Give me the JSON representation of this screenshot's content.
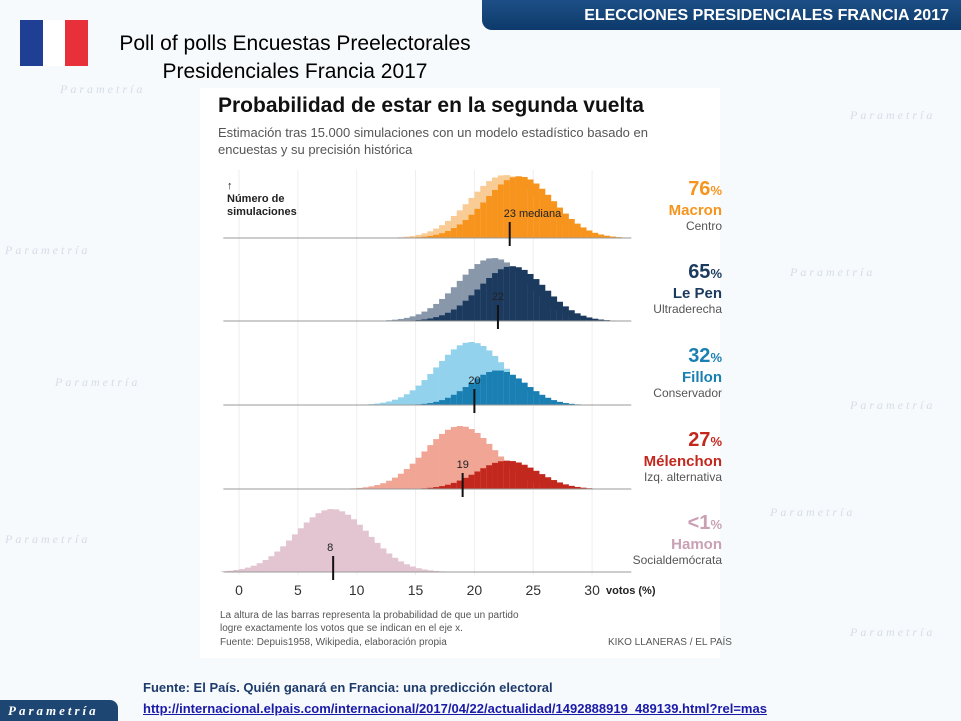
{
  "banner": "ELECCIONES PRESIDENCIALES FRANCIA 2017",
  "slide_title_1": "Poll of polls Encuestas Preelectorales",
  "slide_title_2": "Presidenciales Francia 2017",
  "watermark": "Parametría",
  "logo": "Parametría",
  "footer": {
    "source": "Fuente: El País. Quién ganará en Francia: una predicción electoral",
    "link": "http://internacional.elpais.com/internacional/2017/04/22/actualidad/1492888919_489139.html?rel=mas"
  },
  "chart_data": {
    "type": "bar",
    "title": "Probabilidad de estar en la segunda vuelta",
    "subtitle": "Estimación tras 15.000 simulaciones con un modelo estadístico basado en encuestas y su precisión histórica",
    "ylabel_arrow": "↑",
    "ylabel": "Número de simulaciones",
    "xlabel": "votos (%)",
    "xticks": [
      "0",
      "5",
      "10",
      "15",
      "20",
      "25",
      "30"
    ],
    "xlim": [
      -1.5,
      33.5
    ],
    "bin_width": 0.5,
    "note": "La altura de las barras representa la probabilidad de que un partido logre exactamente los votos que se indican en el eje x.",
    "source": "Fuente: Depuis1958, Wikipedia, elaboración propia",
    "credit": "KIKO LLANERAS / EL PAÍS",
    "series": [
      {
        "name": "Macron",
        "pct": "76",
        "pct_sign": "%",
        "group": "Centro",
        "median": 23,
        "median_label": "23 mediana",
        "color": "#f7941d",
        "light": "#f9cc95",
        "all": {
          "mean": 22.6,
          "sd": 3.0,
          "peak": 1.0
        },
        "second_round": {
          "mean": 23.8,
          "sd": 2.9,
          "peak": 0.98
        }
      },
      {
        "name": "Le Pen",
        "pct": "65",
        "pct_sign": "%",
        "group": "Ultraderecha",
        "median": 22,
        "median_label": "22",
        "color": "#1b3a5e",
        "light": "#8898aa",
        "all": {
          "mean": 21.6,
          "sd": 3.0,
          "peak": 1.0
        },
        "second_round": {
          "mean": 23.2,
          "sd": 2.8,
          "peak": 0.87
        }
      },
      {
        "name": "Fillon",
        "pct": "32",
        "pct_sign": "%",
        "group": "Conservador",
        "median": 20,
        "median_label": "20",
        "color": "#1a7fb2",
        "light": "#93d2ec",
        "all": {
          "mean": 19.7,
          "sd": 2.9,
          "peak": 1.0
        },
        "second_round": {
          "mean": 22.0,
          "sd": 2.4,
          "peak": 0.55
        }
      },
      {
        "name": "Mélenchon",
        "pct": "27",
        "pct_sign": "%",
        "group": "Izq. alternativa",
        "median": 19,
        "median_label": "19",
        "color": "#c2281d",
        "light": "#f1a595",
        "all": {
          "mean": 18.8,
          "sd": 3.0,
          "peak": 1.0
        },
        "second_round": {
          "mean": 22.8,
          "sd": 2.6,
          "peak": 0.45
        }
      },
      {
        "name": "Hamon",
        "pct": "<1",
        "pct_sign": "%",
        "group": "Socialdemócrata",
        "median": 8,
        "median_label": "8",
        "color": "#c9a0b4",
        "light": "#e3c5d1",
        "all": {
          "mean": 7.9,
          "sd": 3.1,
          "peak": 1.0
        },
        "second_round": null
      }
    ]
  }
}
